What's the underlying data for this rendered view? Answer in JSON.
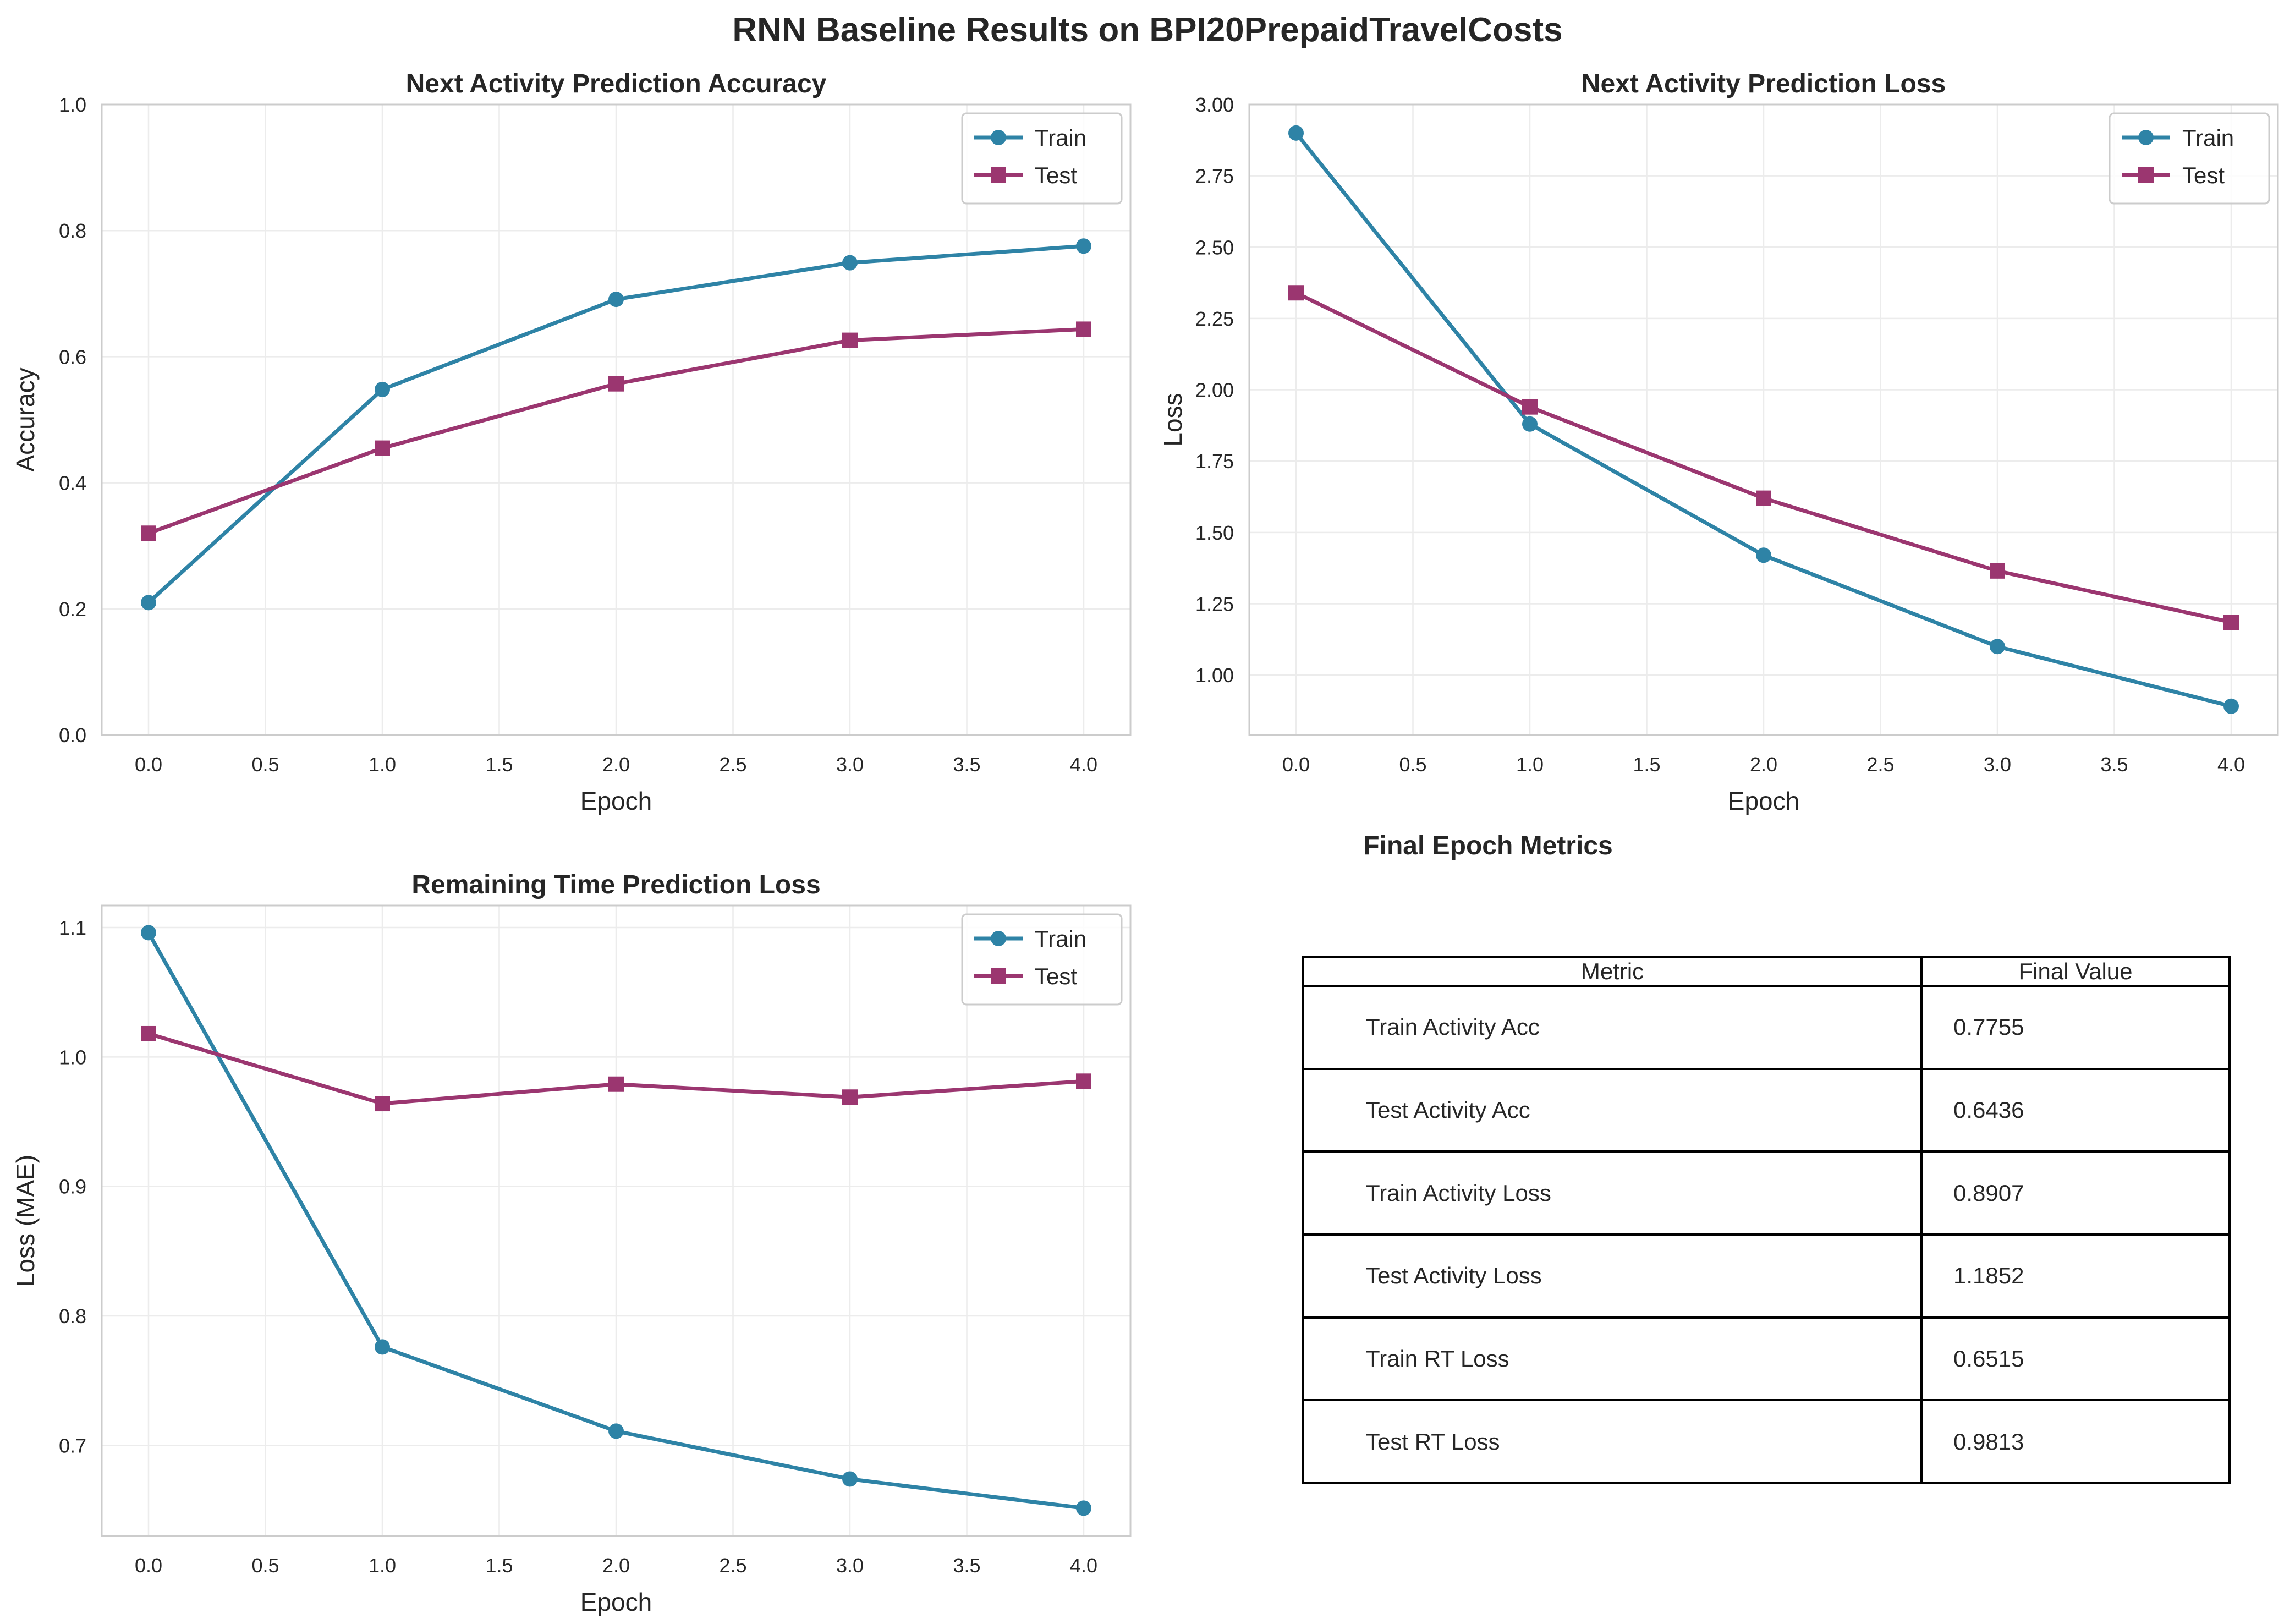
{
  "figure_title": "RNN Baseline Results on BPI20PrepaidTravelCosts",
  "colors": {
    "train": "#2e83a6",
    "test": "#9b3670",
    "grid": "#ececec",
    "spine": "#cccccc"
  },
  "chart_data": [
    {
      "type": "line",
      "title": "Next Activity Prediction Accuracy",
      "xlabel": "Epoch",
      "ylabel": "Accuracy",
      "x": [
        0,
        1,
        2,
        3,
        4
      ],
      "xlim": [
        -0.2,
        4.2
      ],
      "ylim": [
        0,
        1
      ],
      "xticks": [
        "0.0",
        "0.5",
        "1.0",
        "1.5",
        "2.0",
        "2.5",
        "3.0",
        "3.5",
        "4.0"
      ],
      "yticks": [
        "0.0",
        "0.2",
        "0.4",
        "0.6",
        "0.8",
        "1.0"
      ],
      "grid": true,
      "legend": "top-right",
      "series": [
        {
          "name": "Train",
          "marker": "circle",
          "values": [
            0.21,
            0.548,
            0.691,
            0.749,
            0.7755
          ]
        },
        {
          "name": "Test",
          "marker": "square",
          "values": [
            0.32,
            0.455,
            0.557,
            0.626,
            0.6436
          ]
        }
      ]
    },
    {
      "type": "line",
      "title": "Next Activity Prediction Loss",
      "xlabel": "Epoch",
      "ylabel": "Loss",
      "x": [
        0,
        1,
        2,
        3,
        4
      ],
      "xlim": [
        -0.2,
        4.2
      ],
      "ylim": [
        0.79,
        3.0
      ],
      "xticks": [
        "0.0",
        "0.5",
        "1.0",
        "1.5",
        "2.0",
        "2.5",
        "3.0",
        "3.5",
        "4.0"
      ],
      "yticks": [
        "1.00",
        "1.25",
        "1.50",
        "1.75",
        "2.00",
        "2.25",
        "2.50",
        "2.75",
        "3.00"
      ],
      "grid": true,
      "legend": "top-right",
      "series": [
        {
          "name": "Train",
          "marker": "circle",
          "values": [
            2.9,
            1.88,
            1.42,
            1.1,
            0.8907
          ]
        },
        {
          "name": "Test",
          "marker": "square",
          "values": [
            2.34,
            1.94,
            1.62,
            1.365,
            1.1852
          ]
        }
      ]
    },
    {
      "type": "line",
      "title": "Remaining Time Prediction Loss",
      "xlabel": "Epoch",
      "ylabel": "Loss (MAE)",
      "x": [
        0,
        1,
        2,
        3,
        4
      ],
      "xlim": [
        -0.2,
        4.2
      ],
      "ylim": [
        0.63,
        1.117
      ],
      "xticks": [
        "0.0",
        "0.5",
        "1.0",
        "1.5",
        "2.0",
        "2.5",
        "3.0",
        "3.5",
        "4.0"
      ],
      "yticks": [
        "0.7",
        "0.8",
        "0.9",
        "1.0",
        "1.1"
      ],
      "grid": true,
      "legend": "top-right",
      "series": [
        {
          "name": "Train",
          "marker": "circle",
          "values": [
            1.096,
            0.776,
            0.711,
            0.674,
            0.6515
          ]
        },
        {
          "name": "Test",
          "marker": "square",
          "values": [
            1.018,
            0.964,
            0.979,
            0.969,
            0.9813
          ]
        }
      ]
    },
    {
      "type": "table",
      "title": "Final Epoch Metrics",
      "columns": [
        "Metric",
        "Final Value"
      ],
      "rows": [
        [
          "Train Activity Acc",
          "0.7755"
        ],
        [
          "Test Activity Acc",
          "0.6436"
        ],
        [
          "Train Activity Loss",
          "0.8907"
        ],
        [
          "Test Activity Loss",
          "1.1852"
        ],
        [
          "Train RT Loss",
          "0.6515"
        ],
        [
          "Test RT Loss",
          "0.9813"
        ]
      ]
    }
  ]
}
